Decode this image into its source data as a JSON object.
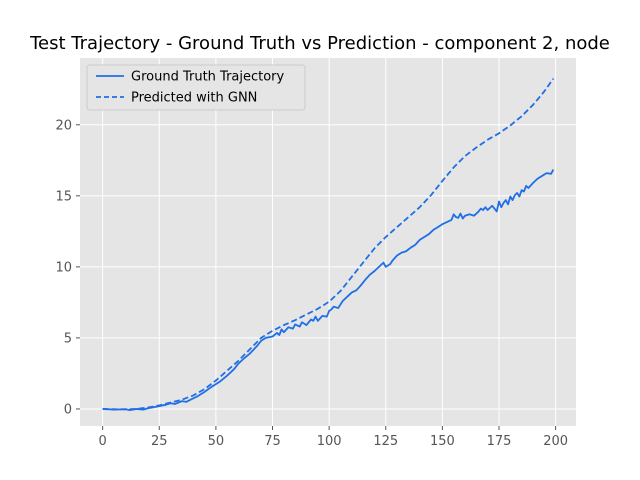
{
  "chart_data": {
    "type": "line",
    "title": "Test Trajectory - Ground Truth vs Prediction - component 2, node",
    "xlabel": "",
    "ylabel": "",
    "xlim": [
      -10,
      209
    ],
    "ylim": [
      -1.2,
      24.7
    ],
    "xticks": [
      0,
      25,
      50,
      75,
      100,
      125,
      150,
      175,
      200
    ],
    "yticks": [
      0,
      5,
      10,
      15,
      20
    ],
    "grid": true,
    "legend_position": "top-left",
    "colors": {
      "line": "#1f6fe6",
      "axes_bg": "#e5e5e5",
      "grid": "#ffffff"
    },
    "series": [
      {
        "name": "Ground Truth Trajectory",
        "style": "solid",
        "x": [
          0,
          5,
          10,
          12,
          15,
          18,
          20,
          22,
          25,
          28,
          30,
          32,
          35,
          37,
          40,
          42,
          45,
          48,
          50,
          52,
          55,
          58,
          60,
          62,
          65,
          68,
          70,
          72,
          75,
          77,
          78,
          79,
          80,
          82,
          84,
          85,
          87,
          88,
          90,
          92,
          93,
          94,
          95,
          97,
          99,
          100,
          101,
          102,
          104,
          106,
          108,
          110,
          112,
          114,
          116,
          118,
          120,
          122,
          124,
          125,
          127,
          128,
          130,
          132,
          134,
          136,
          138,
          140,
          142,
          144,
          146,
          148,
          150,
          152,
          154,
          155,
          156,
          157,
          158,
          159,
          160,
          162,
          164,
          166,
          167,
          168,
          169,
          170,
          172,
          174,
          175,
          176,
          177,
          178,
          179,
          180,
          181,
          182,
          183,
          184,
          185,
          186,
          187,
          188,
          190,
          192,
          194,
          196,
          198,
          199
        ],
        "values": [
          0,
          -0.05,
          -0.02,
          -0.08,
          0,
          -0.05,
          0.05,
          0.1,
          0.2,
          0.3,
          0.4,
          0.35,
          0.55,
          0.5,
          0.75,
          0.9,
          1.2,
          1.55,
          1.75,
          1.95,
          2.35,
          2.8,
          3.2,
          3.5,
          3.9,
          4.4,
          4.8,
          5.0,
          5.1,
          5.35,
          5.2,
          5.6,
          5.4,
          5.75,
          5.65,
          5.95,
          5.8,
          6.1,
          5.9,
          6.3,
          6.2,
          6.5,
          6.2,
          6.55,
          6.5,
          6.9,
          7.0,
          7.2,
          7.1,
          7.6,
          7.9,
          8.2,
          8.35,
          8.7,
          9.1,
          9.45,
          9.7,
          10.0,
          10.3,
          10.0,
          10.2,
          10.45,
          10.8,
          11.0,
          11.1,
          11.35,
          11.55,
          11.9,
          12.1,
          12.3,
          12.6,
          12.8,
          13.0,
          13.15,
          13.3,
          13.7,
          13.5,
          13.45,
          13.75,
          13.4,
          13.6,
          13.7,
          13.6,
          13.9,
          14.1,
          14.0,
          14.2,
          14.0,
          14.3,
          13.9,
          14.6,
          14.2,
          14.5,
          14.7,
          14.4,
          14.95,
          14.7,
          15.05,
          15.2,
          14.95,
          15.4,
          15.3,
          15.7,
          15.55,
          15.9,
          16.2,
          16.4,
          16.6,
          16.55,
          16.85
        ]
      },
      {
        "name": "Predicted with GNN",
        "style": "dashed",
        "x": [
          0,
          5,
          10,
          15,
          20,
          25,
          30,
          35,
          40,
          45,
          50,
          55,
          60,
          65,
          70,
          75,
          80,
          85,
          90,
          95,
          100,
          105,
          110,
          115,
          120,
          125,
          130,
          135,
          140,
          145,
          150,
          155,
          160,
          165,
          170,
          175,
          180,
          185,
          190,
          195,
          199
        ],
        "values": [
          0,
          -0.02,
          -0.02,
          0,
          0.1,
          0.25,
          0.45,
          0.65,
          0.95,
          1.4,
          2.0,
          2.7,
          3.4,
          4.2,
          5.0,
          5.5,
          5.9,
          6.25,
          6.65,
          7.05,
          7.55,
          8.3,
          9.3,
          10.3,
          11.3,
          12.1,
          12.8,
          13.5,
          14.2,
          15.05,
          16.05,
          17.0,
          17.8,
          18.4,
          18.95,
          19.4,
          19.95,
          20.6,
          21.4,
          22.35,
          23.25
        ]
      }
    ]
  }
}
